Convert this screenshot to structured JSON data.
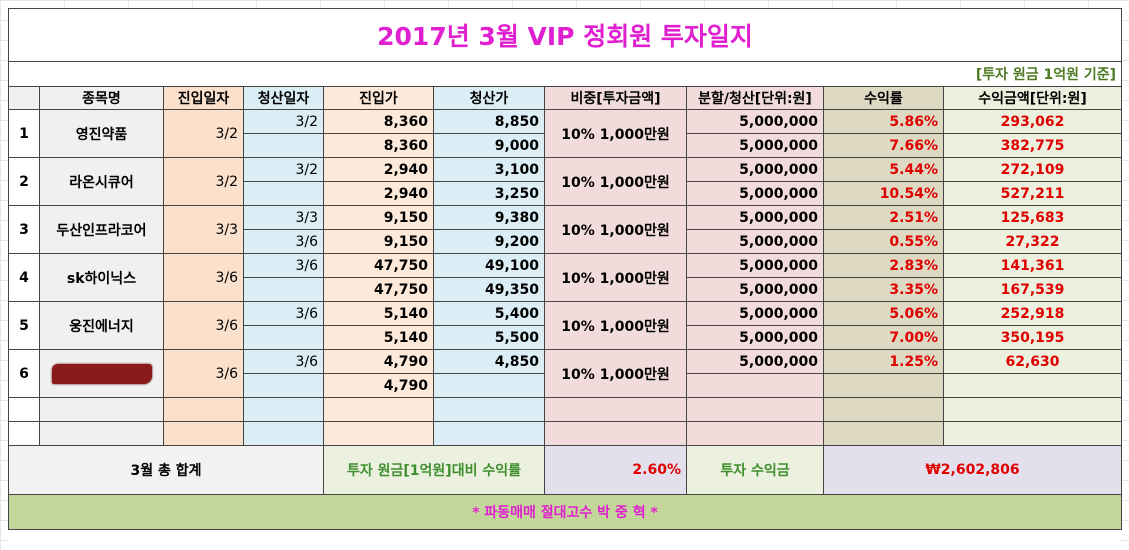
{
  "title": "2017년 3월 VIP 정회원 투자일지",
  "note": "[투자 원금 1억원 기준]",
  "headers": {
    "name": "종목명",
    "entry_date": "진입일자",
    "exit_date": "청산일자",
    "entry_price": "진입가",
    "exit_price": "청산가",
    "weight": "비중[투자금액]",
    "split": "분할/청산[단위:원]",
    "return": "수익률",
    "profit": "수익금액[단위:원]"
  },
  "stocks": [
    {
      "idx": "1",
      "name": "영진약품",
      "entry_date": "3/2",
      "weight": "10% 1,000만원",
      "rows": [
        {
          "exit_date": "3/2",
          "entry_price": "8,360",
          "exit_price": "8,850",
          "split": "5,000,000",
          "return": "5.86%",
          "profit": "293,062"
        },
        {
          "exit_date": "",
          "entry_price": "8,360",
          "exit_price": "9,000",
          "split": "5,000,000",
          "return": "7.66%",
          "profit": "382,775"
        }
      ]
    },
    {
      "idx": "2",
      "name": "라온시큐어",
      "entry_date": "3/2",
      "weight": "10% 1,000만원",
      "rows": [
        {
          "exit_date": "3/2",
          "entry_price": "2,940",
          "exit_price": "3,100",
          "split": "5,000,000",
          "return": "5.44%",
          "profit": "272,109"
        },
        {
          "exit_date": "",
          "entry_price": "2,940",
          "exit_price": "3,250",
          "split": "5,000,000",
          "return": "10.54%",
          "profit": "527,211"
        }
      ]
    },
    {
      "idx": "3",
      "name": "두산인프라코어",
      "entry_date": "3/3",
      "weight": "10% 1,000만원",
      "rows": [
        {
          "exit_date": "3/3",
          "entry_price": "9,150",
          "exit_price": "9,380",
          "split": "5,000,000",
          "return": "2.51%",
          "profit": "125,683"
        },
        {
          "exit_date": "3/6",
          "entry_price": "9,150",
          "exit_price": "9,200",
          "split": "5,000,000",
          "return": "0.55%",
          "profit": "27,322"
        }
      ]
    },
    {
      "idx": "4",
      "name": "sk하이닉스",
      "entry_date": "3/6",
      "weight": "10% 1,000만원",
      "rows": [
        {
          "exit_date": "3/6",
          "entry_price": "47,750",
          "exit_price": "49,100",
          "split": "5,000,000",
          "return": "2.83%",
          "profit": "141,361"
        },
        {
          "exit_date": "",
          "entry_price": "47,750",
          "exit_price": "49,350",
          "split": "5,000,000",
          "return": "3.35%",
          "profit": "167,539"
        }
      ]
    },
    {
      "idx": "5",
      "name": "웅진에너지",
      "entry_date": "3/6",
      "weight": "10% 1,000만원",
      "rows": [
        {
          "exit_date": "3/6",
          "entry_price": "5,140",
          "exit_price": "5,400",
          "split": "5,000,000",
          "return": "5.06%",
          "profit": "252,918"
        },
        {
          "exit_date": "",
          "entry_price": "5,140",
          "exit_price": "5,500",
          "split": "5,000,000",
          "return": "7.00%",
          "profit": "350,195"
        }
      ]
    },
    {
      "idx": "6",
      "name": "",
      "entry_date": "3/6",
      "weight": "10% 1,000만원",
      "rows": [
        {
          "exit_date": "3/6",
          "entry_price": "4,790",
          "exit_price": "4,850",
          "split": "5,000,000",
          "return": "1.25%",
          "profit": "62,630"
        },
        {
          "exit_date": "",
          "entry_price": "4,790",
          "exit_price": "",
          "split": "",
          "return": "",
          "profit": ""
        }
      ]
    }
  ],
  "totals": {
    "label": "3월 총 합계",
    "ratio_label": "투자 원금[1억원]대비 수익률",
    "ratio": "2.60%",
    "profit_label": "투자 수익금",
    "profit": "₩2,602,806"
  },
  "footer": "* 파동매매 절대고수 박 중 혁 *",
  "colors": {
    "title": "#e020d0",
    "note": "#4d7a22",
    "return_text": "#e00000",
    "footer_bg": "#c4d79b"
  }
}
